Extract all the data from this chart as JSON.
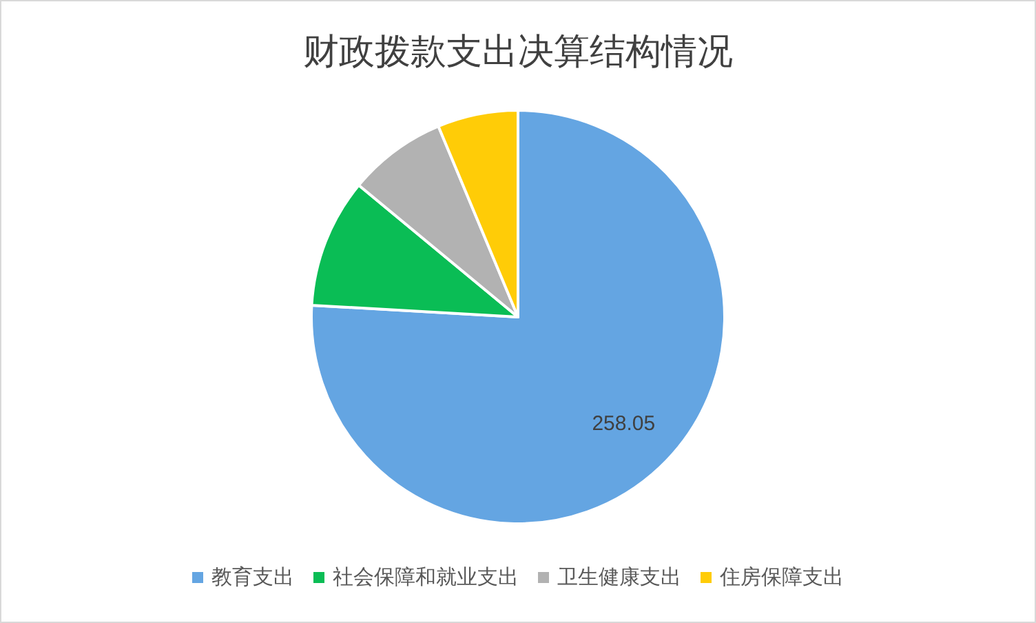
{
  "chart_data": {
    "type": "pie",
    "title": "财政拨款支出决算结构情况",
    "categories": [
      "教育支出",
      "社会保障和就业支出",
      "卫生健康支出",
      "住房保障支出"
    ],
    "values": [
      258.05,
      34.3,
      26.2,
      21.4
    ],
    "colors": [
      "#64a5e2",
      "#0abd55",
      "#b2b2b2",
      "#ffcc07"
    ],
    "value_labels": [
      "258.05",
      null,
      null,
      null
    ],
    "legend": "bottom"
  }
}
